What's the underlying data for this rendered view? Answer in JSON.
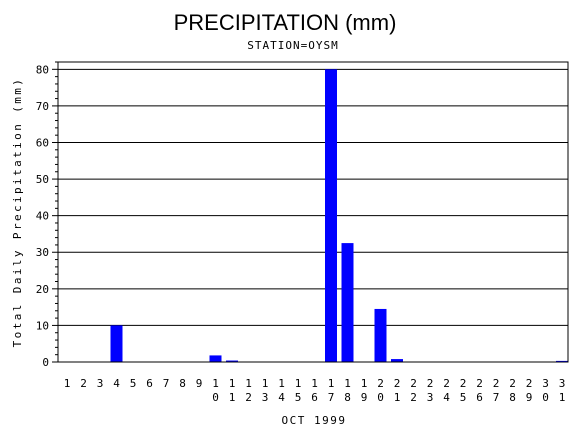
{
  "chart_data": {
    "type": "bar",
    "title": "PRECIPITATION (mm)",
    "subtitle": "STATION=OYSM",
    "xlabel": "OCT 1999",
    "ylabel": "Total Daily Precipitation (mm)",
    "ylim": [
      0,
      82
    ],
    "yticks": [
      0,
      10,
      20,
      30,
      40,
      50,
      60,
      70,
      80
    ],
    "grid": true,
    "categories": [
      "1",
      "2",
      "3",
      "4",
      "5",
      "6",
      "7",
      "8",
      "9",
      "10",
      "11",
      "12",
      "13",
      "14",
      "15",
      "16",
      "17",
      "18",
      "19",
      "20",
      "21",
      "22",
      "23",
      "24",
      "25",
      "26",
      "27",
      "28",
      "29",
      "30",
      "31"
    ],
    "values": [
      0,
      0,
      0,
      10,
      0,
      0,
      0,
      0,
      0,
      1.8,
      0.4,
      0,
      0,
      0,
      0,
      0,
      80,
      32.5,
      0,
      14.5,
      0.8,
      0,
      0,
      0,
      0,
      0,
      0,
      0,
      0,
      0,
      0.3
    ],
    "bar_color": "#0000ff"
  }
}
